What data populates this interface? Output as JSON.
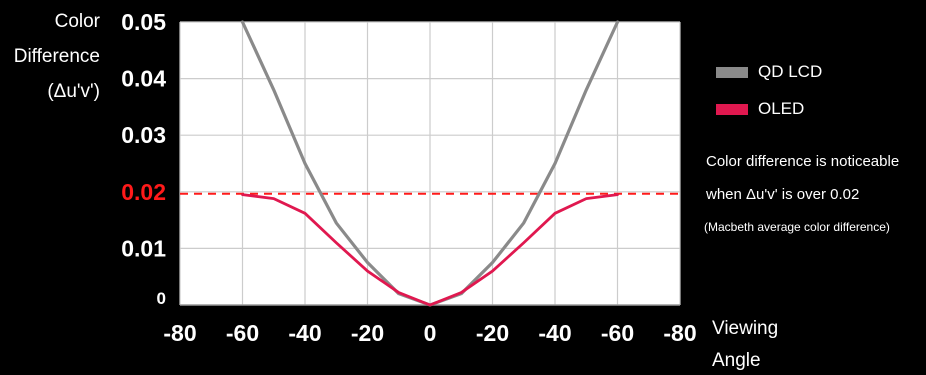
{
  "chart_data": {
    "type": "line",
    "ylabel_lines": [
      "Color",
      "Difference",
      "(Δu'v')"
    ],
    "xlabel_lines": [
      "Viewing",
      "Angle"
    ],
    "x_ticks": [
      "-80",
      "-60",
      "-40",
      "-20",
      "0",
      "-20",
      "-40",
      "-60",
      "-80"
    ],
    "x_tick_values": [
      -80,
      -60,
      -40,
      -20,
      0,
      20,
      40,
      60,
      80
    ],
    "y_ticks": [
      "0",
      "0.01",
      "0.02",
      "0.03",
      "0.04",
      "0.05"
    ],
    "y_tick_values": [
      0,
      0.01,
      0.02,
      0.03,
      0.04,
      0.05
    ],
    "xlim": [
      -80,
      80
    ],
    "ylim": [
      0,
      0.05
    ],
    "grid": true,
    "threshold": {
      "value": 0.02,
      "label": "0.02",
      "color": "#ff1a1a"
    },
    "series": [
      {
        "name": "QD LCD",
        "color": "#8a8a8a",
        "x": [
          -60,
          -50,
          -40,
          -30,
          -20,
          -10,
          0,
          10,
          20,
          30,
          40,
          50,
          60
        ],
        "y": [
          0.05,
          0.038,
          0.025,
          0.0145,
          0.0075,
          0.002,
          0,
          0.002,
          0.0075,
          0.0145,
          0.025,
          0.038,
          0.05
        ]
      },
      {
        "name": "OLED",
        "color": "#e0184f",
        "x": [
          -60,
          -50,
          -40,
          -30,
          -20,
          -10,
          0,
          10,
          20,
          30,
          40,
          50,
          60
        ],
        "y": [
          0.0195,
          0.0188,
          0.0162,
          0.011,
          0.006,
          0.0022,
          0,
          0.0022,
          0.006,
          0.011,
          0.0162,
          0.0188,
          0.0195
        ]
      }
    ],
    "legend_position": "right",
    "annotation_lines": [
      "Color difference is noticeable",
      "when Δu'v' is over 0.02",
      "(Macbeth average color difference)"
    ],
    "colors": {
      "background": "#000000",
      "plot_background": "#ffffff",
      "grid": "#cccccc",
      "text": "#ffffff"
    }
  }
}
